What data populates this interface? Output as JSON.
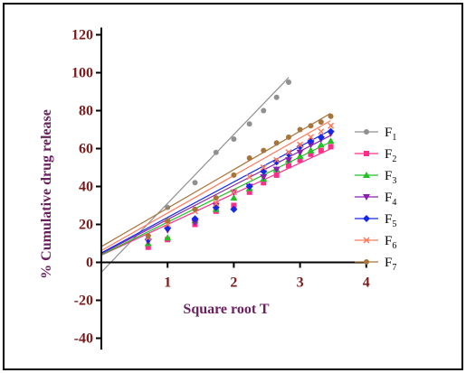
{
  "chart_data": {
    "type": "scatter",
    "xlabel": "Square root T",
    "ylabel": "% Cumulative drug release",
    "xlim": [
      0,
      4
    ],
    "ylim": [
      -45,
      120
    ],
    "x_ticks": [
      "1",
      "2",
      "3",
      "4"
    ],
    "y_ticks": [
      "120",
      "100",
      "80",
      "60",
      "40",
      "20",
      "0",
      "-20",
      "-40"
    ],
    "x_tick_values": [
      1,
      2,
      3,
      4
    ],
    "y_tick_values": [
      120,
      100,
      80,
      60,
      40,
      20,
      0,
      -20,
      -40
    ],
    "x_values": [
      0.707,
      1.0,
      1.414,
      1.732,
      2.0,
      2.236,
      2.449,
      2.646,
      2.828,
      3.0,
      3.162,
      3.317,
      3.464
    ],
    "legend_placement": "right",
    "grid": false,
    "series": [
      {
        "name": "F",
        "sub": "1",
        "color": "#909090",
        "marker": "circle",
        "values": [
          8,
          29,
          42,
          58,
          65,
          73,
          80,
          87,
          95,
          null,
          null,
          null,
          null
        ],
        "fit": [
          -5.2,
          36.3
        ],
        "fit_range": [
          0,
          2.83
        ]
      },
      {
        "name": "F",
        "sub": "2",
        "color": "#ff2e8b",
        "marker": "square",
        "values": [
          8,
          12,
          20,
          27,
          30,
          37,
          42,
          46,
          51,
          54,
          57,
          59,
          61
        ],
        "fit": [
          3.8,
          16.2
        ],
        "fit_range": [
          0,
          3.46
        ]
      },
      {
        "name": "F",
        "sub": "3",
        "color": "#22c025",
        "marker": "triangle",
        "values": [
          10,
          13,
          22,
          28,
          34,
          39,
          44,
          49,
          54,
          56,
          59,
          62,
          64
        ],
        "fit": [
          4.0,
          17.2
        ],
        "fit_range": [
          0,
          3.46
        ]
      },
      {
        "name": "F",
        "sub": "4",
        "color": "#8a1fb0",
        "marker": "triangle-down",
        "values": [
          11,
          17,
          21,
          30,
          37,
          40,
          45,
          49,
          54,
          58,
          62,
          65,
          68
        ],
        "fit": [
          4.6,
          18.0
        ],
        "fit_range": [
          0,
          3.46
        ]
      },
      {
        "name": "F",
        "sub": "5",
        "color": "#1528e6",
        "marker": "diamond",
        "values": [
          12,
          18,
          23,
          29,
          28,
          40,
          48,
          53,
          57,
          61,
          64,
          66,
          69
        ],
        "fit": [
          5.0,
          18.7
        ],
        "fit_range": [
          0,
          3.46
        ]
      },
      {
        "name": "F",
        "sub": "6",
        "color": "#ff7a5a",
        "marker": "cross",
        "values": [
          13,
          20,
          27,
          31,
          37,
          45,
          50,
          54,
          58,
          62,
          66,
          69,
          72
        ],
        "fit": [
          6.2,
          19.8
        ],
        "fit_range": [
          0,
          3.46
        ]
      },
      {
        "name": "F",
        "sub": "7",
        "color": "#a8743a",
        "marker": "circle",
        "values": [
          14,
          22,
          28,
          34,
          46,
          55,
          59,
          63,
          66,
          70,
          72,
          74,
          77
        ],
        "fit": [
          8.3,
          20.3
        ],
        "fit_range": [
          0,
          3.46
        ]
      }
    ]
  }
}
